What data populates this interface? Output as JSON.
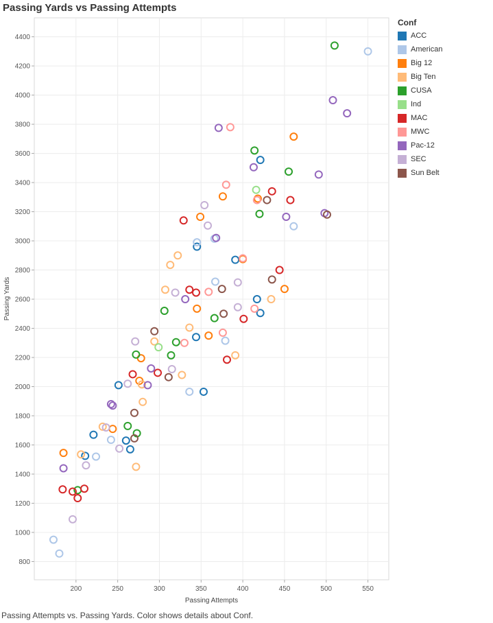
{
  "title": "Passing Yards vs Passing Attempts",
  "caption": "Passing Attempts vs. Passing Yards.  Color shows details about Conf.",
  "legend_title": "Conf",
  "conferences": [
    {
      "name": "ACC",
      "color": "#1f77b4"
    },
    {
      "name": "American",
      "color": "#aec7e8"
    },
    {
      "name": "Big 12",
      "color": "#ff7f0e"
    },
    {
      "name": "Big Ten",
      "color": "#ffbb78"
    },
    {
      "name": "CUSA",
      "color": "#2ca02c"
    },
    {
      "name": "Ind",
      "color": "#98df8a"
    },
    {
      "name": "MAC",
      "color": "#d62728"
    },
    {
      "name": "MWC",
      "color": "#ff9896"
    },
    {
      "name": "Pac-12",
      "color": "#9467bd"
    },
    {
      "name": "SEC",
      "color": "#c5b0d5"
    },
    {
      "name": "Sun Belt",
      "color": "#8c564b"
    }
  ],
  "chart_data": {
    "type": "scatter",
    "title": "Passing Yards vs Passing Attempts",
    "xlabel": "Passing Attempts",
    "ylabel": "Passing Yards",
    "xlim": [
      150,
      575
    ],
    "ylim": [
      675,
      4530
    ],
    "xticks": [
      200,
      250,
      300,
      350,
      400,
      450,
      500,
      550
    ],
    "yticks": [
      800,
      1000,
      1200,
      1400,
      1600,
      1800,
      2000,
      2200,
      2400,
      2600,
      2800,
      3000,
      3200,
      3400,
      3600,
      3800,
      4000,
      4200,
      4400
    ],
    "grid": true,
    "legend_position": "right",
    "series": [
      {
        "name": "ACC",
        "points": [
          [
            221,
            1670
          ],
          [
            211,
            1525
          ],
          [
            251,
            2010
          ],
          [
            260,
            1630
          ],
          [
            265,
            1570
          ],
          [
            345,
            2960
          ],
          [
            344,
            2340
          ],
          [
            353,
            1965
          ],
          [
            391,
            2870
          ],
          [
            417,
            2600
          ],
          [
            421,
            2505
          ],
          [
            421,
            3555
          ]
        ]
      },
      {
        "name": "American",
        "points": [
          [
            173,
            950
          ],
          [
            180,
            855
          ],
          [
            224,
            1520
          ],
          [
            242,
            1635
          ],
          [
            336,
            1965
          ],
          [
            366,
            3015
          ],
          [
            367,
            2720
          ],
          [
            379,
            2315
          ],
          [
            345,
            2990
          ],
          [
            461,
            3100
          ],
          [
            550,
            4300
          ]
        ]
      },
      {
        "name": "Big 12",
        "points": [
          [
            185,
            1545
          ],
          [
            244,
            1710
          ],
          [
            276,
            2040
          ],
          [
            278,
            2195
          ],
          [
            345,
            2535
          ],
          [
            349,
            3165
          ],
          [
            359,
            2350
          ],
          [
            376,
            3305
          ],
          [
            400,
            2875
          ],
          [
            418,
            3290
          ],
          [
            450,
            2670
          ],
          [
            461,
            3715
          ]
        ]
      },
      {
        "name": "Big Ten",
        "points": [
          [
            206,
            1535
          ],
          [
            232,
            1725
          ],
          [
            272,
            1450
          ],
          [
            279,
            2015
          ],
          [
            280,
            1895
          ],
          [
            294,
            2310
          ],
          [
            307,
            2665
          ],
          [
            313,
            2835
          ],
          [
            322,
            2900
          ],
          [
            327,
            2080
          ],
          [
            336,
            2405
          ],
          [
            391,
            2215
          ],
          [
            434,
            2600
          ]
        ]
      },
      {
        "name": "CUSA",
        "points": [
          [
            202,
            1290
          ],
          [
            262,
            1730
          ],
          [
            272,
            2220
          ],
          [
            273,
            1680
          ],
          [
            306,
            2520
          ],
          [
            314,
            2215
          ],
          [
            320,
            2305
          ],
          [
            366,
            2470
          ],
          [
            414,
            3620
          ],
          [
            420,
            3185
          ],
          [
            455,
            3475
          ],
          [
            510,
            4340
          ]
        ]
      },
      {
        "name": "Ind",
        "points": [
          [
            299,
            2270
          ],
          [
            416,
            3350
          ]
        ]
      },
      {
        "name": "MAC",
        "points": [
          [
            184,
            1295
          ],
          [
            196,
            1280
          ],
          [
            202,
            1235
          ],
          [
            210,
            1300
          ],
          [
            268,
            2085
          ],
          [
            298,
            2095
          ],
          [
            329,
            3140
          ],
          [
            336,
            2665
          ],
          [
            344,
            2645
          ],
          [
            381,
            2185
          ],
          [
            401,
            2465
          ],
          [
            435,
            3340
          ],
          [
            444,
            2800
          ],
          [
            457,
            3280
          ]
        ]
      },
      {
        "name": "MWC",
        "points": [
          [
            330,
            2300
          ],
          [
            359,
            2650
          ],
          [
            376,
            2370
          ],
          [
            380,
            3385
          ],
          [
            385,
            3780
          ],
          [
            400,
            2880
          ],
          [
            414,
            2535
          ],
          [
            417,
            3280
          ]
        ]
      },
      {
        "name": "Pac-12",
        "points": [
          [
            185,
            1440
          ],
          [
            242,
            1880
          ],
          [
            244,
            1870
          ],
          [
            286,
            2010
          ],
          [
            290,
            2125
          ],
          [
            331,
            2600
          ],
          [
            368,
            3020
          ],
          [
            371,
            3775
          ],
          [
            413,
            3505
          ],
          [
            452,
            3165
          ],
          [
            491,
            3455
          ],
          [
            498,
            3190
          ],
          [
            508,
            3965
          ],
          [
            525,
            3875
          ]
        ]
      },
      {
        "name": "SEC",
        "points": [
          [
            196,
            1090
          ],
          [
            212,
            1460
          ],
          [
            236,
            1720
          ],
          [
            252,
            1575
          ],
          [
            262,
            2020
          ],
          [
            271,
            2310
          ],
          [
            315,
            2120
          ],
          [
            319,
            2645
          ],
          [
            354,
            3245
          ],
          [
            358,
            3105
          ],
          [
            394,
            2545
          ],
          [
            394,
            2715
          ]
        ]
      },
      {
        "name": "Sun Belt",
        "points": [
          [
            270,
            1645
          ],
          [
            270,
            1820
          ],
          [
            294,
            2380
          ],
          [
            311,
            2065
          ],
          [
            375,
            2670
          ],
          [
            377,
            2500
          ],
          [
            429,
            3280
          ],
          [
            435,
            2735
          ],
          [
            501,
            3180
          ]
        ]
      }
    ]
  }
}
